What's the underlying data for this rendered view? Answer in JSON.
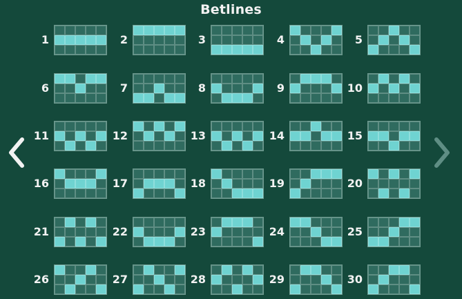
{
  "title": "Betlines",
  "nav": {
    "prev_icon": "chevron-left-icon",
    "next_icon": "chevron-right-icon"
  },
  "colors": {
    "background": "#14493b",
    "cell_off": "#2f6b5f",
    "cell_on": "#6fd3d1",
    "next_arrow": "#5f8e84"
  },
  "betlines": [
    {
      "label": "1",
      "rows": [
        1,
        1,
        1,
        1,
        1
      ]
    },
    {
      "label": "2",
      "rows": [
        0,
        0,
        0,
        0,
        0
      ]
    },
    {
      "label": "3",
      "rows": [
        2,
        2,
        2,
        2,
        2
      ]
    },
    {
      "label": "4",
      "rows": [
        0,
        1,
        2,
        1,
        0
      ]
    },
    {
      "label": "5",
      "rows": [
        2,
        1,
        0,
        1,
        2
      ]
    },
    {
      "label": "6",
      "rows": [
        0,
        0,
        1,
        0,
        0
      ]
    },
    {
      "label": "7",
      "rows": [
        2,
        2,
        1,
        2,
        2
      ]
    },
    {
      "label": "8",
      "rows": [
        1,
        2,
        2,
        2,
        1
      ]
    },
    {
      "label": "9",
      "rows": [
        1,
        0,
        0,
        0,
        1
      ]
    },
    {
      "label": "10",
      "rows": [
        1,
        0,
        1,
        0,
        1
      ]
    },
    {
      "label": "11",
      "rows": [
        1,
        2,
        1,
        2,
        1
      ]
    },
    {
      "label": "12",
      "rows": [
        0,
        1,
        0,
        1,
        0
      ]
    },
    {
      "label": "13",
      "rows": [
        1,
        2,
        1,
        2,
        1
      ]
    },
    {
      "label": "14",
      "rows": [
        1,
        1,
        0,
        1,
        1
      ]
    },
    {
      "label": "15",
      "rows": [
        1,
        1,
        2,
        1,
        1
      ]
    },
    {
      "label": "16",
      "rows": [
        0,
        1,
        1,
        1,
        0
      ]
    },
    {
      "label": "17",
      "rows": [
        2,
        1,
        1,
        1,
        2
      ]
    },
    {
      "label": "18",
      "rows": [
        0,
        1,
        2,
        2,
        2
      ]
    },
    {
      "label": "19",
      "rows": [
        2,
        1,
        0,
        0,
        0
      ]
    },
    {
      "label": "20",
      "rows": [
        0,
        2,
        0,
        2,
        0
      ]
    },
    {
      "label": "21",
      "rows": [
        2,
        0,
        2,
        0,
        2
      ]
    },
    {
      "label": "22",
      "rows": [
        1,
        2,
        2,
        2,
        1
      ]
    },
    {
      "label": "23",
      "rows": [
        1,
        0,
        0,
        0,
        2
      ]
    },
    {
      "label": "24",
      "rows": [
        0,
        0,
        1,
        2,
        2
      ]
    },
    {
      "label": "25",
      "rows": [
        2,
        2,
        1,
        0,
        0
      ]
    },
    {
      "label": "26",
      "rows": [
        0,
        2,
        1,
        0,
        2
      ]
    },
    {
      "label": "27",
      "rows": [
        2,
        0,
        1,
        2,
        0
      ]
    },
    {
      "label": "28",
      "rows": [
        1,
        0,
        2,
        0,
        1
      ]
    },
    {
      "label": "29",
      "rows": [
        2,
        0,
        0,
        1,
        2
      ]
    },
    {
      "label": "30",
      "rows": [
        2,
        1,
        0,
        0,
        2
      ]
    }
  ]
}
